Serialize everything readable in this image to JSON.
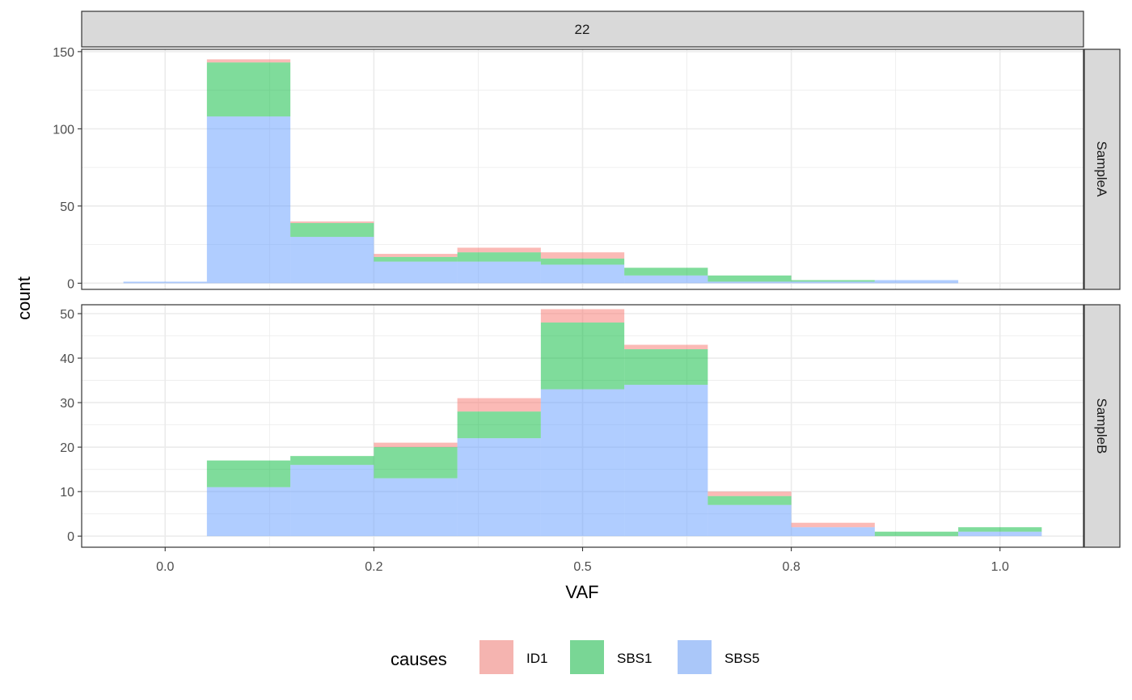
{
  "chart_data": {
    "type": "bar",
    "subtype": "stacked-histogram",
    "facet_column_label": "22",
    "xlabel": "VAF",
    "ylabel": "count",
    "xlim": [
      -0.1,
      1.1
    ],
    "x_ticks": [
      0.0,
      0.25,
      0.5,
      0.75,
      1.0
    ],
    "x_tick_labels": [
      "0.0",
      "0.2",
      "0.5",
      "0.8",
      "1.0"
    ],
    "grid": true,
    "legend": {
      "title": "causes",
      "position": "bottom",
      "items": [
        {
          "name": "ID1",
          "color": "#F8766D"
        },
        {
          "name": "SBS1",
          "color": "#00BA38"
        },
        {
          "name": "SBS5",
          "color": "#619CFF"
        }
      ]
    },
    "series_order": [
      "SBS5",
      "SBS1",
      "ID1"
    ],
    "bin_edges": [
      -0.05,
      0.05,
      0.15,
      0.25,
      0.35,
      0.45,
      0.55,
      0.65,
      0.75,
      0.85,
      0.95,
      1.05
    ],
    "panels": [
      {
        "label": "SampleA",
        "ylim": [
          0,
          150
        ],
        "y_ticks": [
          0,
          50,
          100,
          150
        ],
        "series": [
          {
            "name": "SBS5",
            "values": [
              1,
              108,
              30,
              14,
              14,
              12,
              5,
              1,
              1,
              2,
              0
            ]
          },
          {
            "name": "SBS1",
            "values": [
              0,
              35,
              9,
              3,
              6,
              4,
              5,
              4,
              1,
              0,
              0
            ]
          },
          {
            "name": "ID1",
            "values": [
              0,
              2,
              1,
              2,
              3,
              4,
              0,
              0,
              0,
              0,
              0
            ]
          }
        ]
      },
      {
        "label": "SampleB",
        "ylim": [
          0,
          50
        ],
        "y_ticks": [
          0,
          10,
          20,
          30,
          40,
          50
        ],
        "series": [
          {
            "name": "SBS5",
            "values": [
              0,
              11,
              16,
              13,
              22,
              33,
              34,
              7,
              2,
              0,
              1
            ]
          },
          {
            "name": "SBS1",
            "values": [
              0,
              6,
              2,
              7,
              6,
              15,
              8,
              2,
              0,
              1,
              1
            ]
          },
          {
            "name": "ID1",
            "values": [
              0,
              0,
              0,
              1,
              3,
              3,
              1,
              1,
              1,
              0,
              0
            ]
          }
        ]
      }
    ]
  }
}
